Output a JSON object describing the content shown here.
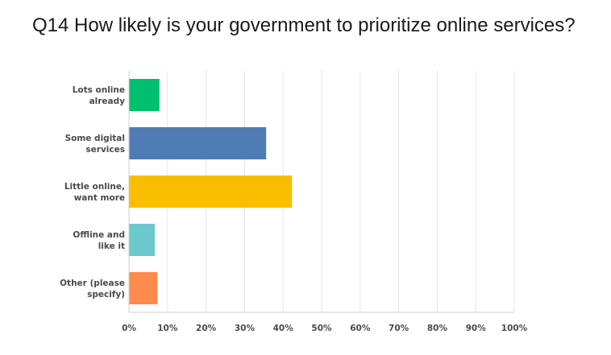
{
  "chart_data": {
    "type": "bar",
    "orientation": "horizontal",
    "title": "Q14 How likely is your government to prioritize online services?",
    "categories": [
      [
        "Lots online",
        "already"
      ],
      [
        "Some digital",
        "services"
      ],
      [
        "Little online,",
        "want more"
      ],
      [
        "Offline and",
        "like it"
      ],
      [
        "Other (please",
        "specify)"
      ]
    ],
    "values": [
      7.8,
      35.5,
      42.2,
      6.6,
      7.3
    ],
    "colors": [
      "#00bf6f",
      "#507cb6",
      "#f9be00",
      "#6bc8cd",
      "#ff8b4f"
    ],
    "xlim": [
      0,
      100
    ],
    "x_ticks": [
      "0%",
      "10%",
      "20%",
      "30%",
      "40%",
      "50%",
      "60%",
      "70%",
      "80%",
      "90%",
      "100%"
    ],
    "grid": true,
    "legend": "none"
  }
}
